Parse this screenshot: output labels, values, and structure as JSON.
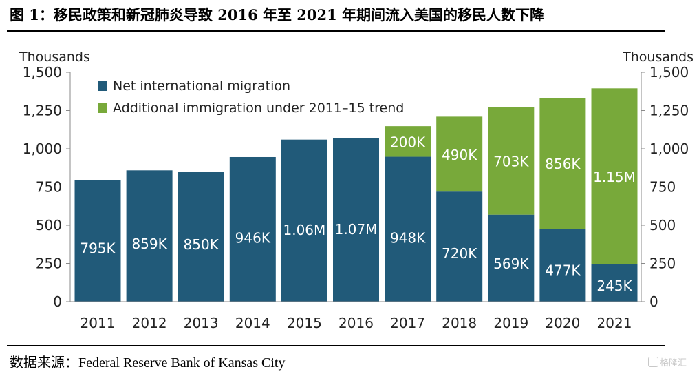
{
  "figure": {
    "title": "图 1：移民政策和新冠肺炎导致 2016 年至 2021 年期间流入美国的移民人数下降",
    "source": "数据来源：Federal Reserve Bank of Kansas City",
    "watermark": "格隆汇"
  },
  "chart_data": {
    "type": "bar",
    "stacked": true,
    "categories": [
      "2011",
      "2012",
      "2013",
      "2014",
      "2015",
      "2016",
      "2017",
      "2018",
      "2019",
      "2020",
      "2021"
    ],
    "series": [
      {
        "name": "Net international migration",
        "color": "#215a79",
        "values": [
          795,
          859,
          850,
          946,
          1060,
          1070,
          948,
          720,
          569,
          477,
          245
        ],
        "labels": [
          "795K",
          "859K",
          "850K",
          "946K",
          "1.06M",
          "1.07M",
          "948K",
          "720K",
          "569K",
          "477K",
          "245K"
        ]
      },
      {
        "name": "Additional immigration under 2011–15 trend",
        "color": "#78a93a",
        "values": [
          null,
          null,
          null,
          null,
          null,
          null,
          200,
          490,
          703,
          856,
          1150
        ],
        "labels": [
          "",
          "",
          "",
          "",
          "",
          "",
          "200K",
          "490K",
          "703K",
          "856K",
          "1.15M"
        ]
      }
    ],
    "ylabel_left": "Thousands",
    "ylabel_right": "Thousands",
    "ylim": [
      0,
      1500
    ],
    "yticks": [
      0,
      250,
      500,
      750,
      1000,
      1250,
      1500
    ],
    "ytick_labels": [
      "0",
      "250",
      "500",
      "750",
      "1,000",
      "1,250",
      "1,500"
    ],
    "legend_position": "top-left",
    "grid": false
  }
}
